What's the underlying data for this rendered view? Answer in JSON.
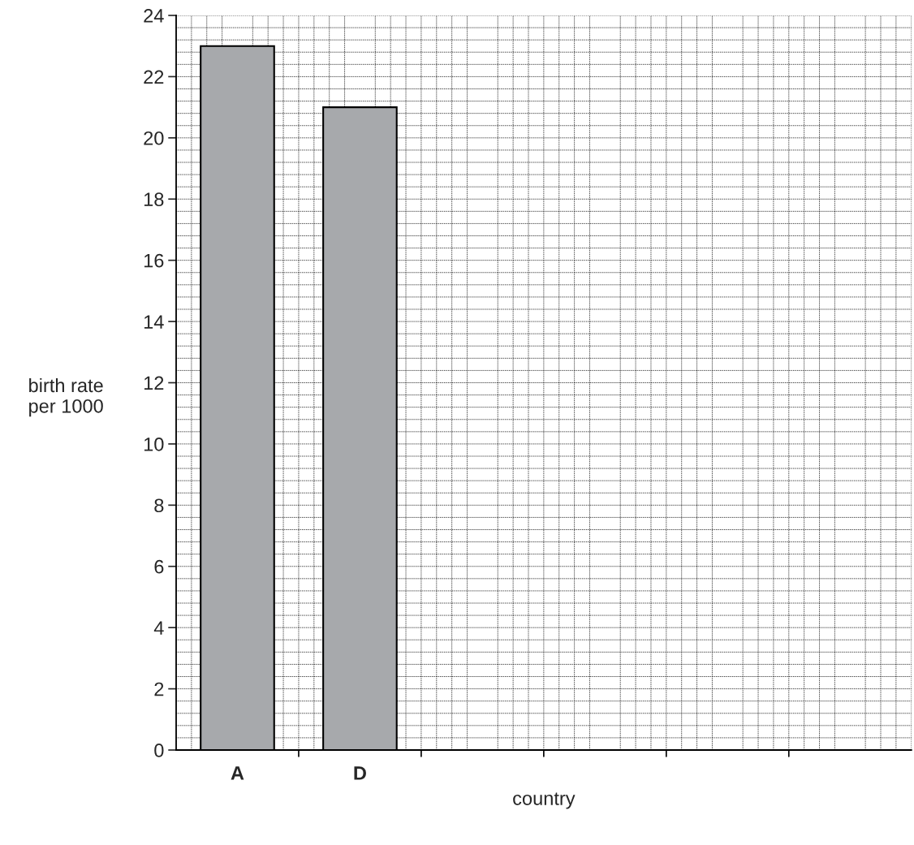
{
  "chart_data": {
    "type": "bar",
    "categories": [
      "A",
      "D",
      null,
      null,
      null,
      null
    ],
    "values": [
      23,
      21,
      null,
      null,
      null,
      null
    ],
    "color": "#a7a9ac",
    "xlabel": "country",
    "ylabel": "birth rate\nper 1000",
    "ylim": [
      0,
      24
    ],
    "yticks": [
      0,
      2,
      4,
      6,
      8,
      10,
      12,
      14,
      16,
      18,
      20,
      22,
      24
    ],
    "grid": true
  }
}
